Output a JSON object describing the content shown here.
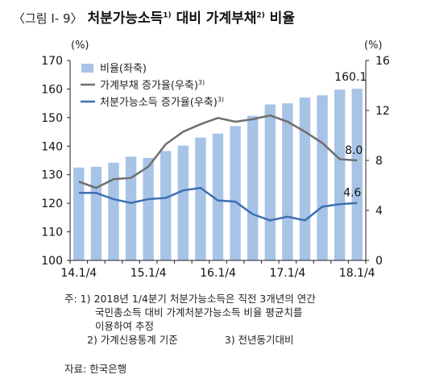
{
  "header": {
    "tag": "〈그림 Ⅰ- 9〉",
    "title_part1": "처분가능소득",
    "title_sup1": "1)",
    "title_part2": " 대비 가계부채",
    "title_sup2": "2)",
    "title_part3": " 비율"
  },
  "chart_data": {
    "type": "bar+line",
    "left_unit": "(%)",
    "right_unit": "(%)",
    "y_left": {
      "min": 100,
      "max": 170,
      "ticks": [
        100,
        110,
        120,
        130,
        140,
        150,
        160,
        170
      ]
    },
    "y_right": {
      "min": 0,
      "max": 16,
      "ticks": [
        0,
        4,
        8,
        12,
        16
      ]
    },
    "x_tick_labels": [
      "14.1/4",
      "15.1/4",
      "16.1/4",
      "17.1/4",
      "18.1/4"
    ],
    "quarters": [
      "14.1/4",
      "14.2/4",
      "14.3/4",
      "14.4/4",
      "15.1/4",
      "15.2/4",
      "15.3/4",
      "15.4/4",
      "16.1/4",
      "16.2/4",
      "16.3/4",
      "16.4/4",
      "17.1/4",
      "17.2/4",
      "17.3/4",
      "17.4/4",
      "18.1/4"
    ],
    "legend": [
      {
        "label": "비율(좌축)",
        "type": "bar"
      },
      {
        "label": "가계부채 증가율(우축)",
        "sup": "3)",
        "type": "line"
      },
      {
        "label": "처분가능소득 증가율(우축)",
        "sup": "3)",
        "type": "line"
      }
    ],
    "bar_values": [
      132.5,
      132.8,
      134.2,
      136.3,
      135.9,
      138.3,
      140.2,
      143.0,
      144.4,
      147.0,
      150.6,
      154.6,
      155.0,
      157.0,
      157.8,
      159.8,
      160.1
    ],
    "debt_growth": [
      6.3,
      5.8,
      6.5,
      6.6,
      7.5,
      9.3,
      10.3,
      10.9,
      11.4,
      11.1,
      11.3,
      11.6,
      11.1,
      10.3,
      9.4,
      8.1,
      8.0
    ],
    "income_growth": [
      5.4,
      5.4,
      4.9,
      4.6,
      4.9,
      5.0,
      5.6,
      5.8,
      4.8,
      4.7,
      3.7,
      3.2,
      3.5,
      3.2,
      4.3,
      4.5,
      4.6
    ],
    "labels": {
      "bar_last": "160.1",
      "debt_last": "8.0",
      "income_last": "4.6"
    },
    "colors": {
      "bar": "#a7c3e6",
      "debt": "#6e6e6e",
      "income": "#3f6fb3"
    }
  },
  "footnotes": {
    "n1_line1": "주: 1) 2018년 1/4분기 처분가능소득은 직전 3개년의 연간",
    "n1_line2": "국민총소득 대비 가계처분가능소득 비율 평균치를",
    "n1_line3": "이용하여 추정",
    "n2": "2) 가계신용통계 기준",
    "n3": "3) 전년동기대비",
    "source": "자료: 한국은행"
  }
}
